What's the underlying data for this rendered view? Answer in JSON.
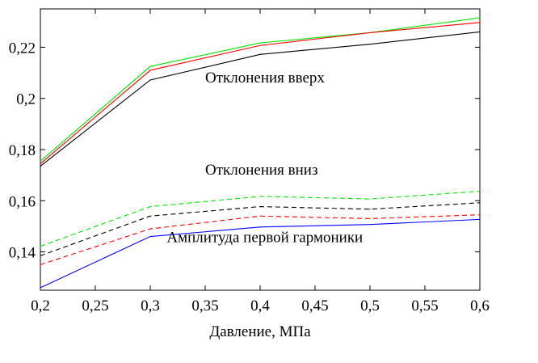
{
  "chart_data": {
    "type": "line",
    "title": "",
    "xlabel": "Давление, МПа",
    "ylabel": "",
    "xlim": [
      0.2,
      0.6
    ],
    "ylim": [
      0.125,
      0.235
    ],
    "x_ticks": [
      0.2,
      0.25,
      0.3,
      0.35,
      0.4,
      0.45,
      0.5,
      0.55,
      0.6
    ],
    "x_tick_labels": [
      "0,2",
      "0,25",
      "0,3",
      "0,35",
      "0,4",
      "0,45",
      "0,5",
      "0,55",
      "0,6"
    ],
    "y_ticks": [
      0.14,
      0.16,
      0.18,
      0.2,
      0.22
    ],
    "y_tick_labels": [
      "0,14",
      "0,16",
      "0,18",
      "0,2",
      "0,22"
    ],
    "grid": false,
    "annotations": [
      {
        "text": "Отклонения вверх",
        "x": 0.35,
        "y": 0.2062
      },
      {
        "text": "Отклонения вниз",
        "x": 0.35,
        "y": 0.1702
      },
      {
        "text": "Амплитуда первой гармоники",
        "x": 0.315,
        "y": 0.1438
      }
    ],
    "series": [
      {
        "color": "#00e600",
        "dash": "solid",
        "x": [
          0.2,
          0.3,
          0.4,
          0.5,
          0.6
        ],
        "y": [
          0.1755,
          0.2125,
          0.2217,
          0.2257,
          0.2315
        ]
      },
      {
        "color": "#ff0000",
        "dash": "solid",
        "x": [
          0.2,
          0.3,
          0.4,
          0.5,
          0.6
        ],
        "y": [
          0.1745,
          0.211,
          0.2207,
          0.2257,
          0.2297
        ]
      },
      {
        "color": "#000000",
        "dash": "solid",
        "x": [
          0.2,
          0.3,
          0.4,
          0.5,
          0.6
        ],
        "y": [
          0.1735,
          0.2072,
          0.2172,
          0.2212,
          0.226
        ]
      },
      {
        "color": "#00e600",
        "dash": "dashed",
        "x": [
          0.2,
          0.3,
          0.4,
          0.5,
          0.6
        ],
        "y": [
          0.1422,
          0.1577,
          0.1617,
          0.1607,
          0.1637
        ]
      },
      {
        "color": "#000000",
        "dash": "dashed",
        "x": [
          0.2,
          0.3,
          0.4,
          0.5,
          0.6
        ],
        "y": [
          0.1385,
          0.154,
          0.1577,
          0.1567,
          0.1592
        ]
      },
      {
        "color": "#ff0000",
        "dash": "dashed",
        "x": [
          0.2,
          0.3,
          0.4,
          0.5,
          0.6
        ],
        "y": [
          0.135,
          0.149,
          0.154,
          0.153,
          0.1545
        ]
      },
      {
        "color": "#0000ff",
        "dash": "solid",
        "x": [
          0.2,
          0.3,
          0.4,
          0.5,
          0.6
        ],
        "y": [
          0.126,
          0.146,
          0.1497,
          0.1507,
          0.1527
        ]
      }
    ]
  }
}
